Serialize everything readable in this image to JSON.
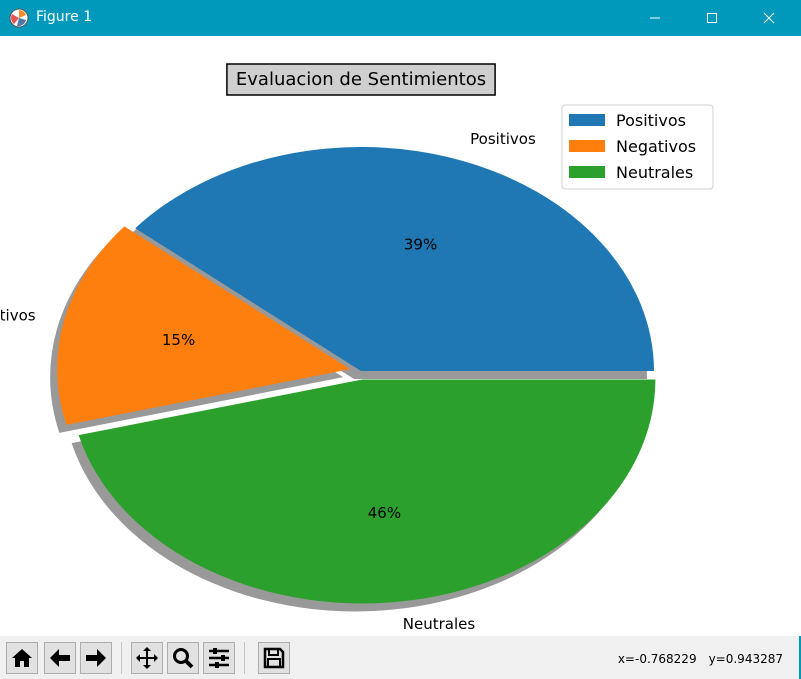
{
  "window": {
    "title": "Figure 1",
    "accent": "#0099bc"
  },
  "toolbar": {
    "buttons": [
      {
        "name": "home-button",
        "icon": "home-icon"
      },
      {
        "name": "back-button",
        "icon": "arrow-left-icon"
      },
      {
        "name": "forward-button",
        "icon": "arrow-right-icon"
      },
      {
        "name": "pan-button",
        "icon": "move-icon"
      },
      {
        "name": "zoom-button",
        "icon": "magnifier-icon"
      },
      {
        "name": "configure-subplots-button",
        "icon": "sliders-icon"
      },
      {
        "name": "save-button",
        "icon": "floppy-disk-icon"
      }
    ],
    "coord_x": "x=-0.768229",
    "coord_y": "y=0.943287"
  },
  "chart_data": {
    "type": "pie",
    "title": "Evaluacion de Sentimientos",
    "labels": [
      "Positivos",
      "Negativos",
      "Neutrales"
    ],
    "values": [
      39,
      15,
      46
    ],
    "autopct_labels": [
      "39%",
      "15%",
      "46%"
    ],
    "colors": [
      "#1f77b4",
      "#ff7f0e",
      "#2ca02c"
    ],
    "explode": [
      0.0,
      0.1,
      0.1
    ],
    "shadow": true,
    "legend": {
      "placement": "upper-right",
      "entries": [
        "Positivos",
        "Negativos",
        "Neutrales"
      ]
    }
  }
}
